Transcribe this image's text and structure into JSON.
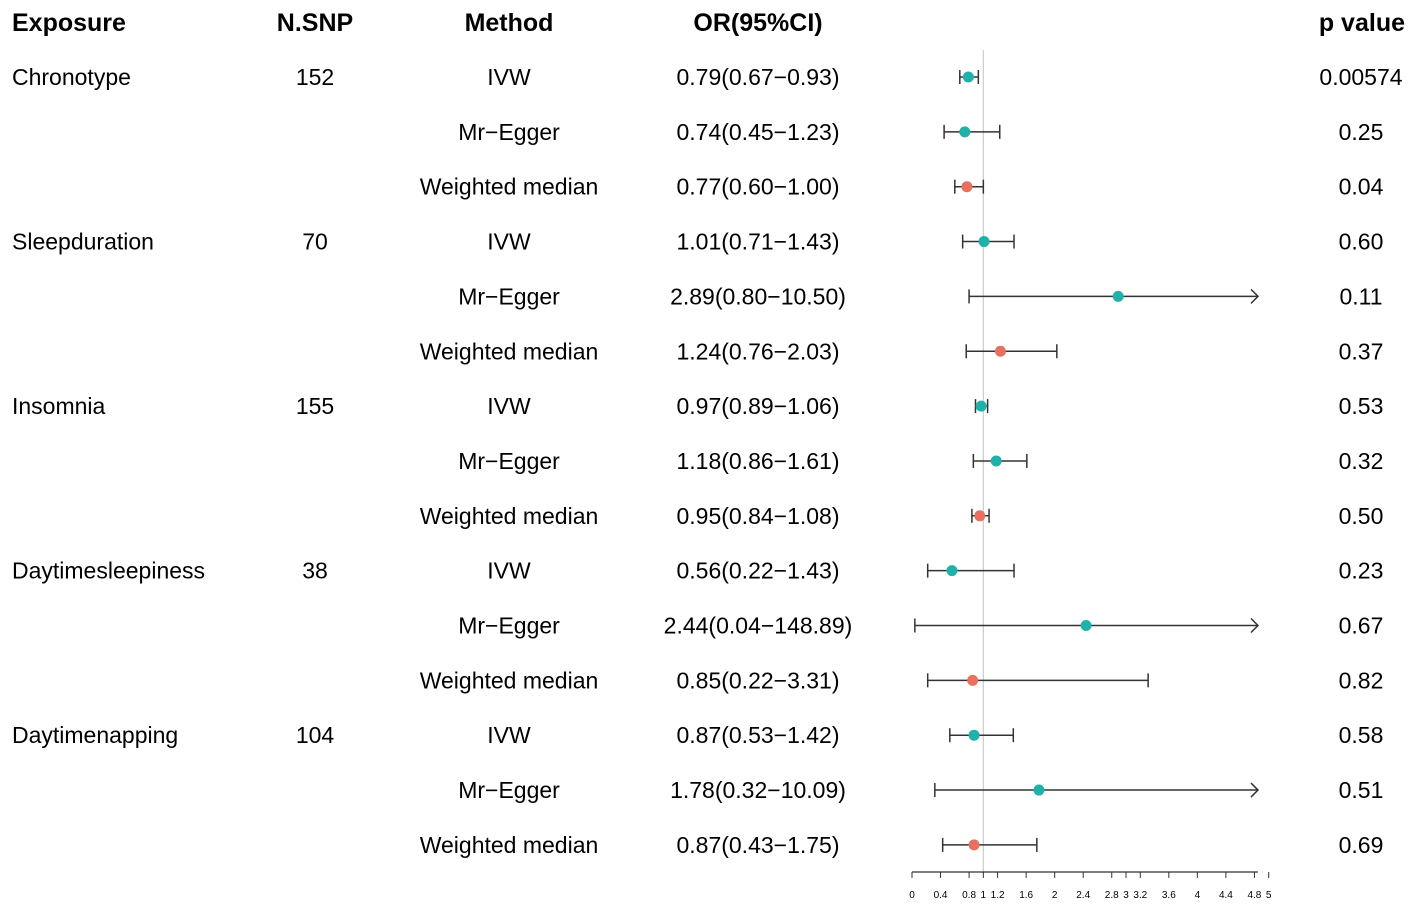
{
  "chart_data": {
    "type": "forest",
    "columns": {
      "exposure": "Exposure",
      "nsnp": "N.SNP",
      "method": "Method",
      "or_ci": "OR(95%CI)",
      "p": "p value"
    },
    "x_axis": {
      "min": 0,
      "max": 4.85,
      "reference_line": 1,
      "ticks": [
        {
          "value": 0,
          "label": "0"
        },
        {
          "value": 0.4,
          "label": "0.4"
        },
        {
          "value": 0.8,
          "label": "0.8"
        },
        {
          "value": 1,
          "label": "1"
        },
        {
          "value": 1.2,
          "label": "1.2"
        },
        {
          "value": 1.6,
          "label": "1.6"
        },
        {
          "value": 2,
          "label": "2"
        },
        {
          "value": 2.4,
          "label": "2.4"
        },
        {
          "value": 2.8,
          "label": "2.8"
        },
        {
          "value": 3,
          "label": "3"
        },
        {
          "value": 3.2,
          "label": "3.2"
        },
        {
          "value": 3.6,
          "label": "3.6"
        },
        {
          "value": 4,
          "label": "4"
        },
        {
          "value": 4.4,
          "label": "4.4"
        },
        {
          "value": 4.8,
          "label": "4.8"
        },
        {
          "value": 5,
          "label": "5"
        }
      ]
    },
    "colors": {
      "IVW": "#20b2aa",
      "Mr-Egger": "#20b2aa",
      "Weighted median": "#e8705f",
      "line": "#333333",
      "ref": "#cccccc"
    },
    "groups": [
      {
        "exposure": "Chronotype",
        "nsnp": "152",
        "rows": [
          {
            "method": "IVW",
            "or_text": "0.79(0.67−0.93)",
            "or": 0.79,
            "lo": 0.67,
            "hi": 0.93,
            "p": "0.00574"
          },
          {
            "method": "Mr−Egger",
            "or_text": "0.74(0.45−1.23)",
            "or": 0.74,
            "lo": 0.45,
            "hi": 1.23,
            "p": "0.25"
          },
          {
            "method": "Weighted median",
            "or_text": "0.77(0.60−1.00)",
            "or": 0.77,
            "lo": 0.6,
            "hi": 1.0,
            "p": "0.04"
          }
        ]
      },
      {
        "exposure": "Sleepduration",
        "nsnp": "70",
        "rows": [
          {
            "method": "IVW",
            "or_text": "1.01(0.71−1.43)",
            "or": 1.01,
            "lo": 0.71,
            "hi": 1.43,
            "p": "0.60"
          },
          {
            "method": "Mr−Egger",
            "or_text": "2.89(0.80−10.50)",
            "or": 2.89,
            "lo": 0.8,
            "hi": 10.5,
            "p": "0.11"
          },
          {
            "method": "Weighted median",
            "or_text": "1.24(0.76−2.03)",
            "or": 1.24,
            "lo": 0.76,
            "hi": 2.03,
            "p": "0.37"
          }
        ]
      },
      {
        "exposure": "Insomnia",
        "nsnp": "155",
        "rows": [
          {
            "method": "IVW",
            "or_text": "0.97(0.89−1.06)",
            "or": 0.97,
            "lo": 0.89,
            "hi": 1.06,
            "p": "0.53"
          },
          {
            "method": "Mr−Egger",
            "or_text": "1.18(0.86−1.61)",
            "or": 1.18,
            "lo": 0.86,
            "hi": 1.61,
            "p": "0.32"
          },
          {
            "method": "Weighted median",
            "or_text": "0.95(0.84−1.08)",
            "or": 0.95,
            "lo": 0.84,
            "hi": 1.08,
            "p": "0.50"
          }
        ]
      },
      {
        "exposure": "Daytimesleepiness",
        "nsnp": "38",
        "rows": [
          {
            "method": "IVW",
            "or_text": "0.56(0.22−1.43)",
            "or": 0.56,
            "lo": 0.22,
            "hi": 1.43,
            "p": "0.23"
          },
          {
            "method": "Mr−Egger",
            "or_text": "2.44(0.04−148.89)",
            "or": 2.44,
            "lo": 0.04,
            "hi": 148.89,
            "p": "0.67"
          },
          {
            "method": "Weighted median",
            "or_text": "0.85(0.22−3.31)",
            "or": 0.85,
            "lo": 0.22,
            "hi": 3.31,
            "p": "0.82"
          }
        ]
      },
      {
        "exposure": "Daytimenapping",
        "nsnp": "104",
        "rows": [
          {
            "method": "IVW",
            "or_text": "0.87(0.53−1.42)",
            "or": 0.87,
            "lo": 0.53,
            "hi": 1.42,
            "p": "0.58"
          },
          {
            "method": "Mr−Egger",
            "or_text": "1.78(0.32−10.09)",
            "or": 1.78,
            "lo": 0.32,
            "hi": 10.09,
            "p": "0.51"
          },
          {
            "method": "Weighted median",
            "or_text": "0.87(0.43−1.75)",
            "or": 0.87,
            "lo": 0.43,
            "hi": 1.75,
            "p": "0.69"
          }
        ]
      }
    ]
  }
}
